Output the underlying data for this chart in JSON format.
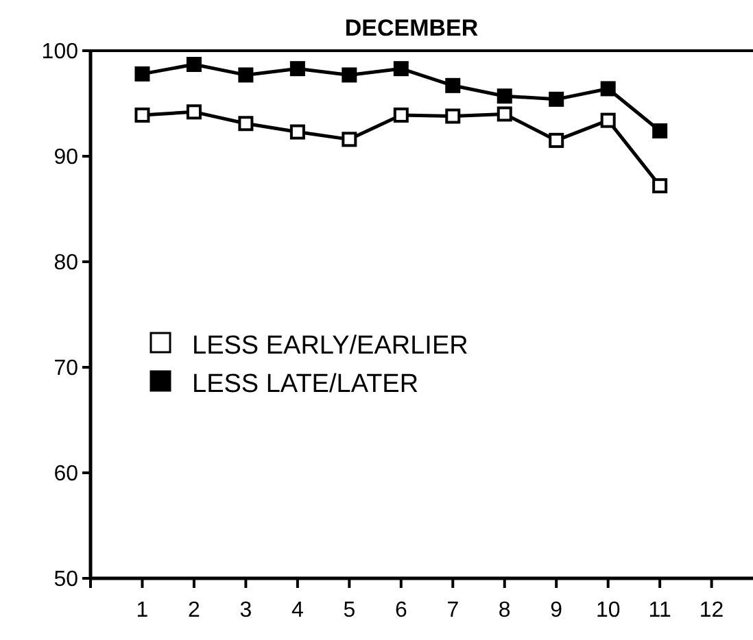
{
  "chart_data": {
    "type": "line",
    "title": "DECEMBER",
    "x": [
      1,
      2,
      3,
      4,
      5,
      6,
      7,
      8,
      9,
      10,
      11
    ],
    "series": [
      {
        "name": "LESS EARLY/EARLIER",
        "color": "#ffffff",
        "values": [
          93.9,
          94.2,
          93.1,
          92.3,
          91.6,
          93.9,
          93.8,
          94.0,
          91.5,
          93.4,
          87.2
        ]
      },
      {
        "name": "LESS LATE/LATER",
        "color": "#000000",
        "values": [
          97.8,
          98.7,
          97.7,
          98.3,
          97.7,
          98.3,
          96.7,
          95.7,
          95.4,
          96.4,
          92.4
        ]
      }
    ],
    "xlim": [
      0,
      12.8
    ],
    "xticks": [
      {
        "value": 0,
        "label": null
      },
      1,
      2,
      3,
      4,
      5,
      6,
      7,
      8,
      9,
      10,
      11,
      12
    ],
    "ylim": [
      50,
      100
    ],
    "yticks": [
      50,
      60,
      70,
      80,
      90,
      100
    ],
    "marker": "square",
    "line_style": "solid",
    "legend": "left",
    "grid": false
  }
}
